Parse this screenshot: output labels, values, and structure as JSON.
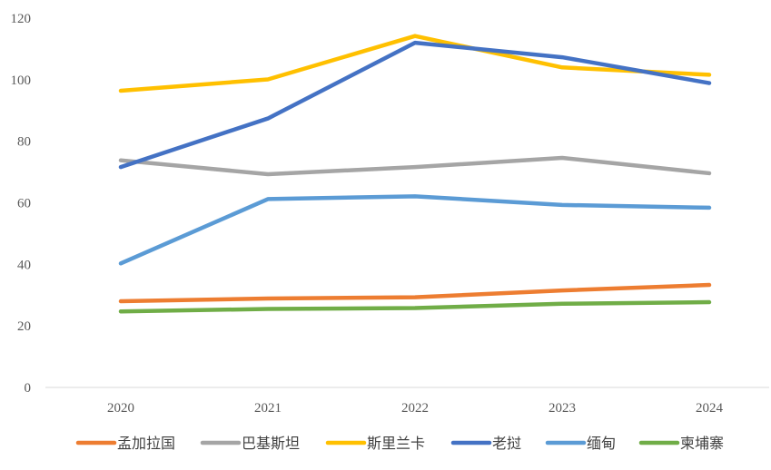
{
  "chart_data": {
    "type": "line",
    "title": "",
    "xlabel": "",
    "ylabel": "",
    "categories": [
      "2020",
      "2021",
      "2022",
      "2023",
      "2024"
    ],
    "ylim": [
      0,
      120
    ],
    "yticks": [
      "0",
      "20",
      "40",
      "60",
      "80",
      "100",
      "120"
    ],
    "grid": false,
    "legend_position": "bottom",
    "series": [
      {
        "name": "孟加拉国",
        "color": "#ED7D31",
        "values": [
          28.0,
          28.9,
          29.3,
          31.5,
          33.3
        ]
      },
      {
        "name": "巴基斯坦",
        "color": "#A5A5A5",
        "values": [
          73.8,
          69.3,
          71.6,
          74.6,
          69.6
        ]
      },
      {
        "name": "斯里兰卡",
        "color": "#FFC000",
        "values": [
          96.4,
          100.1,
          114.2,
          104.0,
          101.6
        ]
      },
      {
        "name": "老挝",
        "color": "#4472C4",
        "values": [
          71.6,
          87.4,
          112.0,
          107.3,
          98.9
        ]
      },
      {
        "name": "缅甸",
        "color": "#5B9BD5",
        "values": [
          40.3,
          61.2,
          62.1,
          59.3,
          58.4
        ]
      },
      {
        "name": "柬埔寨",
        "color": "#70AD47",
        "values": [
          24.7,
          25.5,
          25.8,
          27.2,
          27.7
        ]
      }
    ]
  }
}
